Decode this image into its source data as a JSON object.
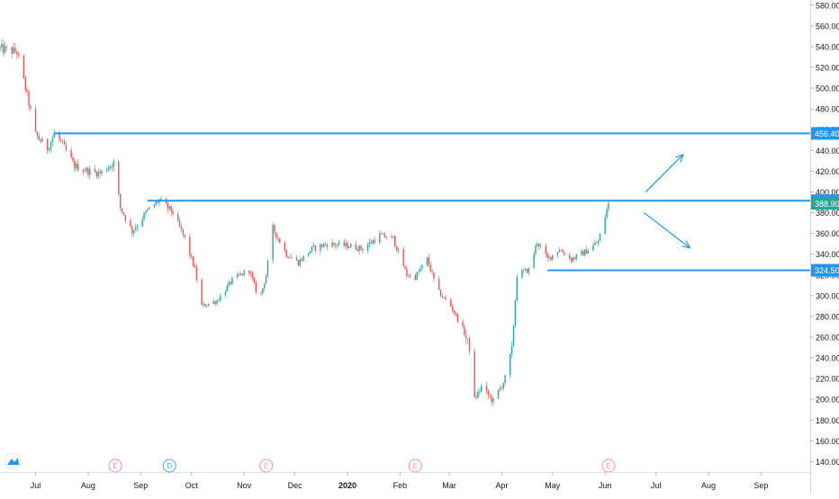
{
  "chart_data": {
    "type": "candlestick",
    "x_ticks": [
      "Jul",
      "Aug",
      "Sep",
      "Oct",
      "Nov",
      "Dec",
      "2020",
      "Feb",
      "Mar",
      "Apr",
      "May",
      "Jun",
      "Jul",
      "Aug",
      "Sep"
    ],
    "y_ticks": [
      "140.00",
      "160.00",
      "180.00",
      "200.00",
      "220.00",
      "240.00",
      "260.00",
      "280.00",
      "300.00",
      "320.00",
      "340.00",
      "360.00",
      "380.00",
      "400.00",
      "420.00",
      "440.00",
      "460.00",
      "480.00",
      "500.00",
      "520.00",
      "540.00",
      "560.00",
      "580.00"
    ],
    "ylim": [
      130,
      585
    ],
    "x_start": "2019-06-10",
    "x_end": "2020-09-30",
    "colors": {
      "up": "#26a69a",
      "down": "#ef5350",
      "level": "#2196f3",
      "last_price": "#26a69a",
      "event": "#f48fb1",
      "dividend": "#42a5f5"
    },
    "price_path": [
      [
        "2019-06-10",
        538
      ],
      [
        "2019-06-20",
        535
      ],
      [
        "2019-06-25",
        500
      ],
      [
        "2019-07-01",
        455
      ],
      [
        "2019-07-08",
        442
      ],
      [
        "2019-07-12",
        456
      ],
      [
        "2019-07-16",
        448
      ],
      [
        "2019-07-24",
        425
      ],
      [
        "2019-08-01",
        420
      ],
      [
        "2019-08-08",
        418
      ],
      [
        "2019-08-16",
        428
      ],
      [
        "2019-08-20",
        385
      ],
      [
        "2019-08-27",
        362
      ],
      [
        "2019-09-05",
        382
      ],
      [
        "2019-09-12",
        392
      ],
      [
        "2019-09-20",
        380
      ],
      [
        "2019-09-27",
        355
      ],
      [
        "2019-10-03",
        325
      ],
      [
        "2019-10-07",
        290
      ],
      [
        "2019-10-16",
        295
      ],
      [
        "2019-10-25",
        315
      ],
      [
        "2019-11-04",
        325
      ],
      [
        "2019-11-10",
        295
      ],
      [
        "2019-11-14",
        320
      ],
      [
        "2019-11-18",
        365
      ],
      [
        "2019-11-26",
        340
      ],
      [
        "2019-12-03",
        332
      ],
      [
        "2019-12-11",
        345
      ],
      [
        "2019-12-20",
        350
      ],
      [
        "2020-01-02",
        348
      ],
      [
        "2020-01-10",
        345
      ],
      [
        "2020-01-20",
        358
      ],
      [
        "2020-01-28",
        355
      ],
      [
        "2020-02-05",
        320
      ],
      [
        "2020-02-10",
        318
      ],
      [
        "2020-02-17",
        335
      ],
      [
        "2020-02-23",
        305
      ],
      [
        "2020-03-02",
        290
      ],
      [
        "2020-03-09",
        268
      ],
      [
        "2020-03-13",
        250
      ],
      [
        "2020-03-16",
        200
      ],
      [
        "2020-03-20",
        212
      ],
      [
        "2020-03-27",
        198
      ],
      [
        "2020-04-03",
        220
      ],
      [
        "2020-04-07",
        248
      ],
      [
        "2020-04-10",
        320
      ],
      [
        "2020-04-17",
        325
      ],
      [
        "2020-04-22",
        352
      ],
      [
        "2020-04-28",
        335
      ],
      [
        "2020-05-05",
        345
      ],
      [
        "2020-05-12",
        335
      ],
      [
        "2020-05-20",
        342
      ],
      [
        "2020-05-28",
        352
      ],
      [
        "2020-06-03",
        388.9
      ]
    ],
    "levels": [
      {
        "value": 456.4,
        "label": "456.40",
        "from": "2019-07-12"
      },
      {
        "value": 391.5,
        "label": "391.50",
        "from": "2019-09-05"
      },
      {
        "value": 324.5,
        "label": "324.50",
        "from": "2020-04-28"
      }
    ],
    "last_price": {
      "value": 388.9,
      "label": "388.90"
    },
    "arrows": [
      {
        "from": [
          "2020-06-25",
          400
        ],
        "to": [
          "2020-07-17",
          436
        ]
      },
      {
        "from": [
          "2020-06-24",
          380
        ],
        "to": [
          "2020-07-21",
          346
        ]
      }
    ],
    "events": [
      {
        "date": "2019-08-17",
        "label": "E",
        "kind": "earnings"
      },
      {
        "date": "2019-09-18",
        "label": "D",
        "kind": "dividend"
      },
      {
        "date": "2019-11-14",
        "label": "E",
        "kind": "earnings"
      },
      {
        "date": "2020-02-10",
        "label": "E",
        "kind": "earnings"
      },
      {
        "date": "2020-06-03",
        "label": "E",
        "kind": "earnings"
      }
    ]
  }
}
